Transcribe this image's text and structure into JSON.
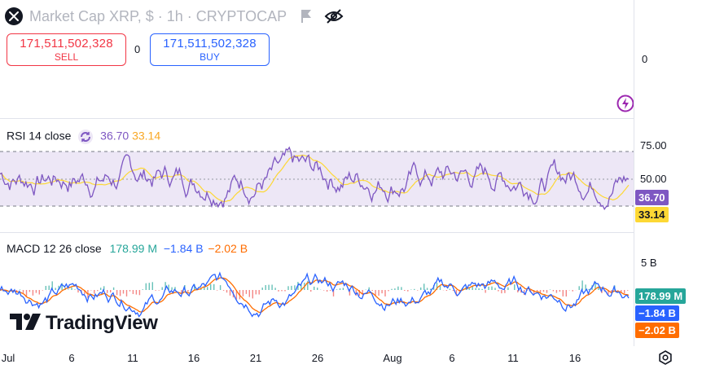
{
  "header": {
    "title": "Market Cap XRP, $ · 1h · CRYPTOCAP",
    "logo_icon": "xrp-logo-icon",
    "flag_icon": "flag-icon",
    "visibility_icon": "eye-off-icon"
  },
  "trade": {
    "sell_price": "171,511,502,328",
    "sell_label": "SELL",
    "spread": "0",
    "buy_price": "171,511,502,328",
    "buy_label": "BUY"
  },
  "main_pane": {
    "scale_label": "0",
    "strategy_icon": "lightning-icon"
  },
  "rsi": {
    "title": "RSI 14 close",
    "rsi_value": "36.70",
    "ma_value": "33.14",
    "scale_upper": "75.00",
    "scale_mid": "50.00",
    "badge_rsi": "36.70",
    "badge_ma": "33.14",
    "colors": {
      "rsi": "#7e57c2",
      "ma": "#fdd835",
      "band": "#ede7f6"
    }
  },
  "macd": {
    "title": "MACD 12 26 close",
    "hist_value": "178.99 M",
    "macd_value": "−1.84 B",
    "signal_value": "−2.02 B",
    "scale_top": "5 B",
    "badge_hist": "178.99 M",
    "badge_macd": "−1.84 B",
    "badge_signal": "−2.02 B",
    "colors": {
      "macd": "#2962ff",
      "signal": "#ff6d00",
      "hist_up": "#26a69a",
      "hist_down": "#ef5350"
    }
  },
  "time_axis": {
    "labels": [
      "Jul",
      "6",
      "11",
      "16",
      "21",
      "26",
      "Aug",
      "6",
      "11",
      "16"
    ]
  },
  "branding": {
    "name": "TradingView"
  },
  "settings_icon": "gear-icon"
}
